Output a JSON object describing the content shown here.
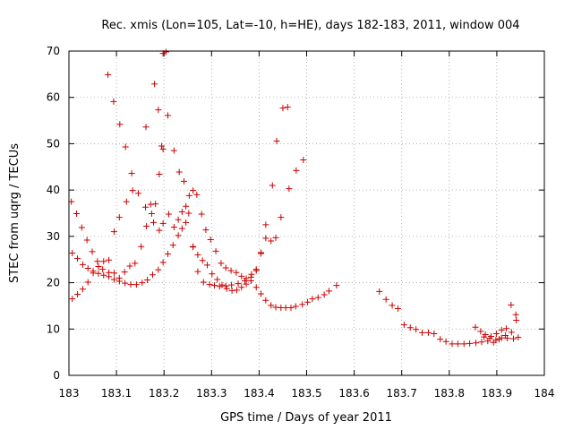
{
  "chart_data": {
    "type": "scatter",
    "title": "Rec. xmis (Lon=105, Lat=-10, h=HE), days 182-183, 2011, window 004",
    "xlabel": "GPS time / Days of year 2011",
    "ylabel": "STEC from uqrg / TECUs",
    "xlim": [
      183,
      184
    ],
    "ylim": [
      0,
      70
    ],
    "x_ticks": [
      "183",
      "183.1",
      "183.2",
      "183.3",
      "183.4",
      "183.5",
      "183.6",
      "183.7",
      "183.8",
      "183.9",
      "184"
    ],
    "y_ticks": [
      "0",
      "10",
      "20",
      "30",
      "40",
      "50",
      "60",
      "70"
    ],
    "grid": true,
    "marker": "+",
    "color": "#cc0000",
    "series": [
      {
        "points": [
          [
            183.007,
            16.5
          ],
          [
            183.018,
            17.5
          ],
          [
            183.029,
            18.6
          ],
          [
            183.04,
            20.1
          ],
          [
            183.051,
            22.1
          ],
          [
            183.062,
            23.5
          ],
          [
            183.073,
            24.6
          ],
          [
            183.084,
            24.9
          ],
          [
            183.095,
            31.0
          ],
          [
            183.106,
            34.1
          ],
          [
            183.121,
            37.5
          ],
          [
            183.134,
            39.9
          ],
          [
            183.146,
            39.3
          ],
          [
            183.161,
            36.3
          ],
          [
            183.172,
            36.9
          ],
          [
            183.178,
            33.0
          ],
          [
            183.19,
            31.3
          ],
          [
            183.198,
            32.8
          ],
          [
            183.21,
            34.8
          ],
          [
            183.221,
            32.0
          ],
          [
            183.23,
            33.6
          ],
          [
            183.238,
            35.3
          ],
          [
            183.246,
            36.5
          ],
          [
            183.253,
            38.8
          ],
          [
            183.261,
            39.9
          ],
          [
            183.269,
            39.0
          ],
          [
            183.279,
            34.8
          ],
          [
            183.288,
            31.4
          ],
          [
            183.298,
            29.3
          ],
          [
            183.309,
            26.8
          ],
          [
            183.32,
            24.2
          ],
          [
            183.33,
            23.2
          ],
          [
            183.341,
            22.6
          ],
          [
            183.352,
            22.2
          ],
          [
            183.363,
            21.4
          ],
          [
            183.373,
            20.9
          ],
          [
            183.383,
            21.2
          ],
          [
            183.394,
            22.9
          ],
          [
            183.404,
            26.5
          ],
          [
            183.414,
            32.5
          ],
          [
            183.428,
            41.0
          ],
          [
            183.437,
            50.6
          ],
          [
            183.45,
            57.7
          ],
          [
            183.46,
            57.9
          ]
        ]
      },
      {
        "points": [
          [
            183.007,
            26.4
          ],
          [
            183.018,
            25.2
          ],
          [
            183.029,
            23.9
          ],
          [
            183.04,
            23.1
          ],
          [
            183.051,
            22.5
          ],
          [
            183.062,
            22.0
          ],
          [
            183.073,
            21.6
          ],
          [
            183.084,
            21.3
          ],
          [
            183.095,
            20.7
          ],
          [
            183.106,
            20.3
          ],
          [
            183.118,
            19.9
          ],
          [
            183.13,
            19.6
          ],
          [
            183.142,
            19.6
          ],
          [
            183.154,
            20.0
          ],
          [
            183.165,
            20.6
          ],
          [
            183.176,
            21.7
          ],
          [
            183.188,
            22.8
          ],
          [
            183.198,
            24.4
          ],
          [
            183.208,
            26.2
          ],
          [
            183.219,
            28.1
          ],
          [
            183.23,
            30.2
          ],
          [
            183.238,
            31.7
          ],
          [
            183.246,
            33.0
          ],
          [
            183.261,
            27.8
          ],
          [
            183.271,
            26.0
          ],
          [
            183.281,
            24.8
          ],
          [
            183.291,
            23.8
          ],
          [
            183.301,
            21.9
          ],
          [
            183.312,
            20.7
          ],
          [
            183.322,
            19.5
          ],
          [
            183.332,
            18.7
          ],
          [
            183.343,
            18.3
          ],
          [
            183.353,
            18.4
          ],
          [
            183.363,
            19.0
          ],
          [
            183.373,
            19.7
          ],
          [
            183.383,
            20.4
          ],
          [
            183.394,
            19.0
          ],
          [
            183.404,
            17.6
          ],
          [
            183.414,
            16.2
          ],
          [
            183.425,
            15.1
          ],
          [
            183.435,
            14.7
          ],
          [
            183.446,
            14.6
          ],
          [
            183.456,
            14.6
          ],
          [
            183.467,
            14.6
          ],
          [
            183.477,
            14.9
          ],
          [
            183.491,
            15.3
          ],
          [
            183.502,
            15.8
          ],
          [
            183.512,
            16.5
          ],
          [
            183.524,
            16.8
          ],
          [
            183.537,
            17.4
          ],
          [
            183.547,
            18.2
          ],
          [
            183.563,
            19.4
          ]
        ]
      },
      {
        "points": [
          [
            183.005,
            37.5
          ],
          [
            183.016,
            34.9
          ],
          [
            183.027,
            31.9
          ],
          [
            183.038,
            29.2
          ],
          [
            183.049,
            26.7
          ],
          [
            183.06,
            24.6
          ],
          [
            183.071,
            22.9
          ],
          [
            183.084,
            22.2
          ],
          [
            183.095,
            22.1
          ],
          [
            183.106,
            21.0
          ],
          [
            183.117,
            22.3
          ],
          [
            183.128,
            23.6
          ],
          [
            183.139,
            24.2
          ],
          [
            183.152,
            27.8
          ],
          [
            183.163,
            32.2
          ],
          [
            183.174,
            34.9
          ],
          [
            183.182,
            37.0
          ],
          [
            183.19,
            43.4
          ],
          [
            183.198,
            48.8
          ],
          [
            183.208,
            56.1
          ],
          [
            183.221,
            48.5
          ],
          [
            183.232,
            43.9
          ],
          [
            183.242,
            41.9
          ],
          [
            183.252,
            35.0
          ],
          [
            183.261,
            27.7
          ],
          [
            183.271,
            22.4
          ],
          [
            183.283,
            20.1
          ],
          [
            183.296,
            19.6
          ],
          [
            183.306,
            19.4
          ],
          [
            183.317,
            19.2
          ],
          [
            183.33,
            19.3
          ],
          [
            183.342,
            19.5
          ],
          [
            183.356,
            19.8
          ],
          [
            183.37,
            20.4
          ],
          [
            183.384,
            21.8
          ],
          [
            183.394,
            22.6
          ],
          [
            183.404,
            26.3
          ],
          [
            183.414,
            29.6
          ],
          [
            183.425,
            29.0
          ],
          [
            183.435,
            29.7
          ],
          [
            183.446,
            34.1
          ],
          [
            183.463,
            40.3
          ],
          [
            183.478,
            44.2
          ],
          [
            183.493,
            46.5
          ]
        ]
      },
      {
        "points": [
          [
            183.082,
            64.9
          ],
          [
            183.094,
            59.1
          ],
          [
            183.107,
            54.2
          ],
          [
            183.119,
            49.3
          ],
          [
            183.132,
            43.6
          ],
          [
            183.162,
            53.6
          ],
          [
            183.18,
            62.9
          ],
          [
            183.188,
            57.3
          ],
          [
            183.195,
            49.5
          ],
          [
            183.198,
            69.5
          ],
          [
            183.204,
            69.8
          ]
        ]
      },
      {
        "points": [
          [
            183.653,
            18.1
          ],
          [
            183.667,
            16.4
          ],
          [
            183.68,
            15.1
          ],
          [
            183.692,
            14.4
          ],
          [
            183.705,
            10.9
          ],
          [
            183.718,
            10.3
          ],
          [
            183.73,
            9.9
          ],
          [
            183.743,
            9.2
          ],
          [
            183.756,
            9.2
          ],
          [
            183.768,
            9.0
          ],
          [
            183.781,
            7.8
          ],
          [
            183.793,
            7.3
          ],
          [
            183.806,
            6.8
          ],
          [
            183.818,
            6.8
          ],
          [
            183.831,
            6.8
          ],
          [
            183.843,
            6.9
          ],
          [
            183.856,
            7.0
          ],
          [
            183.868,
            7.2
          ],
          [
            183.881,
            7.4
          ],
          [
            183.893,
            7.1
          ],
          [
            183.905,
            7.8
          ],
          [
            183.918,
            8.6
          ],
          [
            183.931,
            9.3
          ],
          [
            183.941,
            11.9
          ]
        ]
      },
      {
        "points": [
          [
            183.855,
            10.4
          ],
          [
            183.866,
            9.5
          ],
          [
            183.876,
            8.8
          ],
          [
            183.888,
            8.4
          ],
          [
            183.899,
            9.0
          ],
          [
            183.91,
            9.8
          ],
          [
            183.92,
            10.1
          ],
          [
            183.93,
            15.2
          ],
          [
            183.94,
            13.1
          ],
          [
            183.945,
            8.2
          ],
          [
            183.935,
            7.9
          ],
          [
            183.922,
            8.0
          ],
          [
            183.91,
            8.1
          ],
          [
            183.898,
            7.6
          ],
          [
            183.885,
            8.0
          ],
          [
            183.873,
            8.3
          ]
        ]
      }
    ]
  }
}
